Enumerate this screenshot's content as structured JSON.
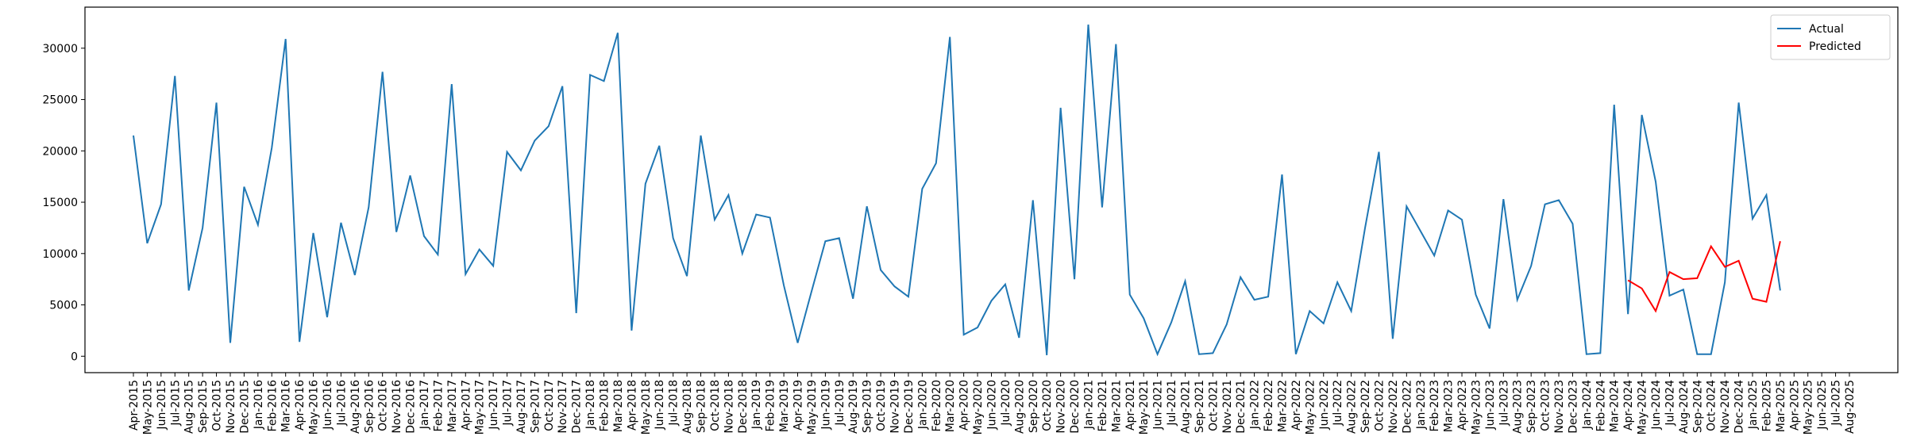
{
  "chart_data": {
    "type": "line",
    "categories": [
      "Apr-2015",
      "May-2015",
      "Jun-2015",
      "Jul-2015",
      "Aug-2015",
      "Sep-2015",
      "Oct-2015",
      "Nov-2015",
      "Dec-2015",
      "Jan-2016",
      "Feb-2016",
      "Mar-2016",
      "Apr-2016",
      "May-2016",
      "Jun-2016",
      "Jul-2016",
      "Aug-2016",
      "Sep-2016",
      "Oct-2016",
      "Nov-2016",
      "Dec-2016",
      "Jan-2017",
      "Feb-2017",
      "Mar-2017",
      "Apr-2017",
      "May-2017",
      "Jun-2017",
      "Jul-2017",
      "Aug-2017",
      "Sep-2017",
      "Oct-2017",
      "Nov-2017",
      "Dec-2017",
      "Jan-2018",
      "Feb-2018",
      "Mar-2018",
      "Apr-2018",
      "May-2018",
      "Jun-2018",
      "Jul-2018",
      "Aug-2018",
      "Sep-2018",
      "Oct-2018",
      "Nov-2018",
      "Dec-2018",
      "Jan-2019",
      "Feb-2019",
      "Mar-2019",
      "Apr-2019",
      "May-2019",
      "Jun-2019",
      "Jul-2019",
      "Aug-2019",
      "Sep-2019",
      "Oct-2019",
      "Nov-2019",
      "Dec-2019",
      "Jan-2020",
      "Feb-2020",
      "Mar-2020",
      "Apr-2020",
      "May-2020",
      "Jun-2020",
      "Jul-2020",
      "Aug-2020",
      "Sep-2020",
      "Oct-2020",
      "Nov-2020",
      "Dec-2020",
      "Jan-2021",
      "Feb-2021",
      "Mar-2021",
      "Apr-2021",
      "May-2021",
      "Jun-2021",
      "Jul-2021",
      "Aug-2021",
      "Sep-2021",
      "Oct-2021",
      "Nov-2021",
      "Dec-2021",
      "Jan-2022",
      "Feb-2022",
      "Mar-2022",
      "Apr-2022",
      "May-2022",
      "Jun-2022",
      "Jul-2022",
      "Aug-2022",
      "Sep-2022",
      "Oct-2022",
      "Nov-2022",
      "Dec-2022",
      "Jan-2023",
      "Feb-2023",
      "Mar-2023",
      "Apr-2023",
      "May-2023",
      "Jun-2023",
      "Jul-2023",
      "Aug-2023",
      "Sep-2023",
      "Oct-2023",
      "Nov-2023",
      "Dec-2023",
      "Jan-2024",
      "Feb-2024",
      "Mar-2024",
      "Apr-2024",
      "May-2024",
      "Jun-2024",
      "Jul-2024",
      "Aug-2024",
      "Sep-2024",
      "Oct-2024",
      "Nov-2024",
      "Dec-2024",
      "Jan-2025",
      "Feb-2025",
      "Mar-2025",
      "Apr-2025",
      "May-2025",
      "Jun-2025",
      "Jul-2025",
      "Aug-2025"
    ],
    "series": [
      {
        "name": "Actual",
        "color": "#1f77b4",
        "values": [
          21500,
          11000,
          14800,
          27300,
          6400,
          12500,
          24700,
          1300,
          16500,
          12800,
          20300,
          30900,
          1400,
          12000,
          3800,
          13000,
          7900,
          14500,
          27700,
          12100,
          17600,
          11700,
          9900,
          26500,
          8000,
          10400,
          8800,
          19900,
          18100,
          21000,
          22400,
          26300,
          4200,
          27400,
          26800,
          31500,
          2500,
          16800,
          20500,
          11500,
          7800,
          21500,
          13300,
          15700,
          10000,
          13800,
          13500,
          6900,
          1300,
          6300,
          11200,
          11500,
          5600,
          14600,
          8400,
          6800,
          5800,
          16300,
          18800,
          31100,
          2100,
          2800,
          5400,
          7000,
          1800,
          15200,
          100,
          24200,
          7500,
          32300,
          14500,
          30400,
          6000,
          3700,
          200,
          3300,
          7300,
          200,
          300,
          3100,
          7700,
          5500,
          5800,
          17700,
          200,
          4400,
          3200,
          7200,
          4400,
          12500,
          19900,
          1700,
          14600,
          12200,
          9800,
          14200,
          13300,
          6000,
          2700,
          15300,
          5500,
          8800,
          14800,
          15200,
          12900,
          200,
          300,
          24500,
          4100,
          23500,
          17000,
          5900,
          6500,
          200,
          200,
          7200,
          24700,
          13400,
          15700,
          6400,
          null,
          null,
          null,
          null,
          null
        ]
      },
      {
        "name": "Predicted",
        "color": "#ff0000",
        "values": [
          null,
          null,
          null,
          null,
          null,
          null,
          null,
          null,
          null,
          null,
          null,
          null,
          null,
          null,
          null,
          null,
          null,
          null,
          null,
          null,
          null,
          null,
          null,
          null,
          null,
          null,
          null,
          null,
          null,
          null,
          null,
          null,
          null,
          null,
          null,
          null,
          null,
          null,
          null,
          null,
          null,
          null,
          null,
          null,
          null,
          null,
          null,
          null,
          null,
          null,
          null,
          null,
          null,
          null,
          null,
          null,
          null,
          null,
          null,
          null,
          null,
          null,
          null,
          null,
          null,
          null,
          null,
          null,
          null,
          null,
          null,
          null,
          null,
          null,
          null,
          null,
          null,
          null,
          null,
          null,
          null,
          null,
          null,
          null,
          null,
          null,
          null,
          null,
          null,
          null,
          null,
          null,
          null,
          null,
          null,
          null,
          null,
          null,
          null,
          null,
          null,
          null,
          null,
          null,
          null,
          null,
          null,
          null,
          7400,
          6600,
          4400,
          8200,
          7500,
          7600,
          10700,
          8700,
          9300,
          5600,
          5300,
          11200,
          null,
          null,
          null,
          null,
          null
        ]
      }
    ],
    "ylim": [
      -1600,
      34000
    ],
    "yticks": [
      0,
      5000,
      10000,
      15000,
      20000,
      25000,
      30000
    ],
    "legend": "upper right"
  }
}
